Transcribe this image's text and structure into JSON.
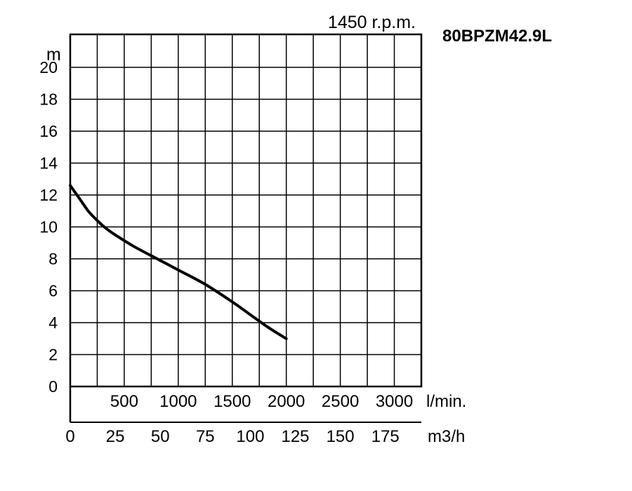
{
  "chart_data": {
    "type": "line",
    "title": "80BPZM42.9L",
    "speed_label": "1450 r.p.m.",
    "ylabel": "m",
    "ylim": [
      0,
      20
    ],
    "y_ticks": [
      "0",
      "2",
      "4",
      "6",
      "8",
      "10",
      "12",
      "14",
      "16",
      "18",
      "20"
    ],
    "x_lpm_unit": "l/min.",
    "x_lpm_ticks": [
      {
        "label": "500",
        "value": 500
      },
      {
        "label": "1000",
        "value": 1000
      },
      {
        "label": "1500",
        "value": 1500
      },
      {
        "label": "2000",
        "value": 2000
      },
      {
        "label": "2500",
        "value": 2500
      },
      {
        "label": "3000",
        "value": 3000
      }
    ],
    "x_m3h_unit": "m3/h",
    "xlim_m3h": [
      0,
      195
    ],
    "x_m3h_ticks": [
      "0",
      "25",
      "50",
      "75",
      "100",
      "125",
      "150",
      "175"
    ],
    "grid": true,
    "series": [
      {
        "x": [
          0,
          5,
          10,
          15,
          20,
          25,
          35,
          50,
          60,
          75,
          90,
          100,
          110,
          120
        ],
        "y": [
          12.6,
          11.8,
          11.0,
          10.4,
          9.9,
          9.5,
          8.8,
          7.9,
          7.3,
          6.4,
          5.3,
          4.5,
          3.7,
          3.0
        ]
      }
    ]
  }
}
